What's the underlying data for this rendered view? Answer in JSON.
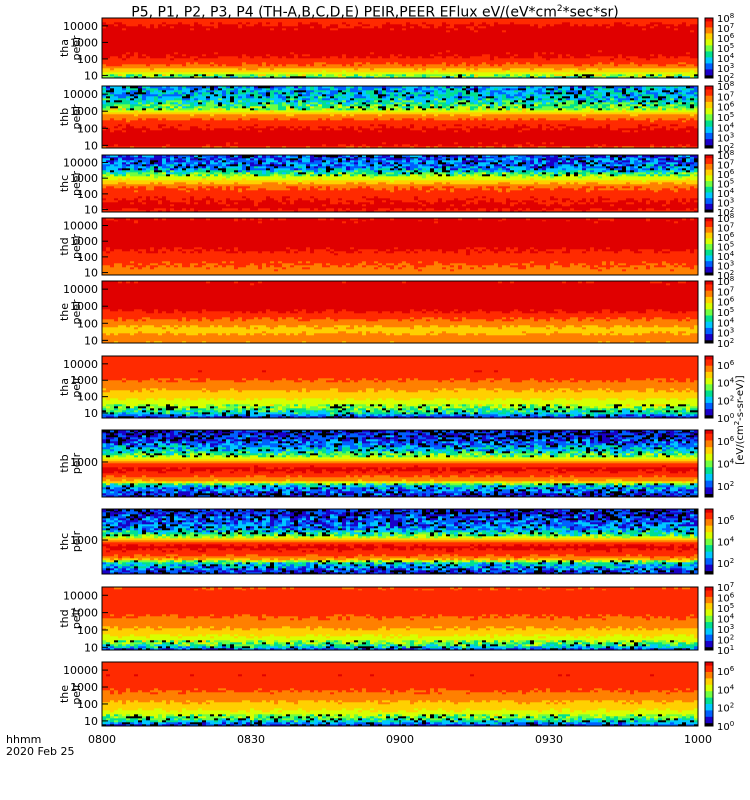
{
  "title_parts": [
    "P5, P1, P2, P3, P4 (TH-A,B,C,D,E) PEIR,PEER EFlux eV/(eV*cm",
    "2",
    "*sec*sr)"
  ],
  "colorbar_label_prefix": "[eV/(cm",
  "colorbar_label_sup": "2",
  "colorbar_label_suffix": "-s-sr-eV)]",
  "time_axis": {
    "label_line1": "hhmm",
    "label_line2": "2020 Feb 25",
    "ticks": [
      "0800",
      "0830",
      "0900",
      "0930",
      "1000"
    ],
    "range": [
      "08:00",
      "10:00"
    ]
  },
  "palette": [
    "#000000",
    "#1a00c8",
    "#0060ff",
    "#00c8ff",
    "#00e090",
    "#70ff40",
    "#d8ff00",
    "#ffd000",
    "#ff8000",
    "#ff2a00",
    "#e00000"
  ],
  "chart_data": {
    "type": "heatmap",
    "x_range": [
      "08:00",
      "10:00"
    ],
    "y_scale": "log",
    "panels": [
      {
        "name": "tha peer",
        "ylabel_line1": "tha",
        "ylabel_line2": "peer",
        "yticks": [
          "10",
          "100",
          "1000",
          "10000"
        ],
        "ylim": [
          7,
          30000
        ],
        "cbar_ticks": [
          "10^2",
          "10^3",
          "10^4",
          "10^5",
          "10^6",
          "10^7",
          "10^8"
        ],
        "cbar_range": [
          2,
          8
        ],
        "profile": [
          [
            7,
            4.5
          ],
          [
            12,
            5.5
          ],
          [
            40,
            7.0
          ],
          [
            150,
            7.8
          ],
          [
            1000,
            8.0
          ],
          [
            10000,
            7.8
          ],
          [
            30000,
            7.3
          ]
        ]
      },
      {
        "name": "thb peer",
        "ylabel_line1": "thb",
        "ylabel_line2": "peer",
        "yticks": [
          "10",
          "100",
          "1000",
          "10000"
        ],
        "ylim": [
          7,
          30000
        ],
        "cbar_ticks": [
          "10^2",
          "10^3",
          "10^4",
          "10^5",
          "10^6",
          "10^7",
          "10^8"
        ],
        "cbar_range": [
          2,
          8
        ],
        "profile": [
          [
            7,
            6.8
          ],
          [
            10,
            7.8
          ],
          [
            40,
            8.0
          ],
          [
            200,
            7.5
          ],
          [
            700,
            6.5
          ],
          [
            1500,
            5.0
          ],
          [
            5000,
            4.0
          ],
          [
            12000,
            3.8
          ],
          [
            30000,
            3.5
          ]
        ]
      },
      {
        "name": "thc peer",
        "ylabel_line1": "thc",
        "ylabel_line2": "peer",
        "yticks": [
          "10",
          "100",
          "1000",
          "10000"
        ],
        "ylim": [
          7,
          30000
        ],
        "cbar_ticks": [
          "10^2",
          "10^3",
          "10^4",
          "10^5",
          "10^6",
          "10^7",
          "10^8"
        ],
        "cbar_range": [
          2,
          8
        ],
        "profile": [
          [
            7,
            7.5
          ],
          [
            15,
            7.9
          ],
          [
            60,
            7.6
          ],
          [
            300,
            7.0
          ],
          [
            700,
            6.0
          ],
          [
            1500,
            5.2
          ],
          [
            4000,
            3.5
          ],
          [
            30000,
            3.0
          ]
        ]
      },
      {
        "name": "thd peer",
        "ylabel_line1": "thd",
        "ylabel_line2": "peer",
        "yticks": [
          "10",
          "100",
          "1000",
          "10000"
        ],
        "ylim": [
          7,
          30000
        ],
        "cbar_ticks": [
          "10^2",
          "10^3",
          "10^4",
          "10^5",
          "10^6",
          "10^7",
          "10^8"
        ],
        "cbar_range": [
          2,
          8
        ],
        "profile": [
          [
            7,
            6.8
          ],
          [
            20,
            7.0
          ],
          [
            100,
            7.4
          ],
          [
            500,
            7.9
          ],
          [
            3000,
            8.0
          ],
          [
            30000,
            7.8
          ]
        ]
      },
      {
        "name": "the peer",
        "ylabel_line1": "the",
        "ylabel_line2": "peer",
        "yticks": [
          "10",
          "100",
          "1000",
          "10000"
        ],
        "ylim": [
          7,
          30000
        ],
        "cbar_ticks": [
          "10^2",
          "10^3",
          "10^4",
          "10^5",
          "10^6",
          "10^7",
          "10^8"
        ],
        "cbar_range": [
          2,
          8
        ],
        "profile": [
          [
            7,
            6.5
          ],
          [
            12,
            7.0
          ],
          [
            40,
            6.2
          ],
          [
            150,
            7.0
          ],
          [
            700,
            7.9
          ],
          [
            10000,
            8.0
          ],
          [
            30000,
            7.8
          ]
        ]
      },
      {
        "name": "tha peir",
        "ylabel_line1": "tha",
        "ylabel_line2": "peir",
        "yticks": [
          "10",
          "100",
          "1000",
          "10000"
        ],
        "ylim": [
          5,
          30000
        ],
        "cbar_ticks": [
          "10^0",
          "10^2",
          "10^4",
          "10^6"
        ],
        "cbar_range": [
          0,
          7
        ],
        "profile": [
          [
            5,
            0.5
          ],
          [
            10,
            2.5
          ],
          [
            30,
            3.8
          ],
          [
            100,
            4.8
          ],
          [
            400,
            5.5
          ],
          [
            3000,
            6.5
          ],
          [
            30000,
            6.3
          ]
        ]
      },
      {
        "name": "thb peir",
        "ylabel_line1": "thb",
        "ylabel_line2": "peir",
        "yticks": [
          "1000"
        ],
        "ylim": [
          300,
          3000
        ],
        "cbar_ticks": [
          "10^2",
          "10^4",
          "10^6"
        ],
        "cbar_range": [
          1,
          7
        ],
        "profile": [
          [
            300,
            1.5
          ],
          [
            380,
            2.2
          ],
          [
            450,
            3.0
          ],
          [
            520,
            5.5
          ],
          [
            650,
            6.4
          ],
          [
            800,
            6.9
          ],
          [
            950,
            6.2
          ],
          [
            1150,
            4.5
          ],
          [
            1500,
            3.0
          ],
          [
            2200,
            1.8
          ],
          [
            3000,
            1.6
          ]
        ]
      },
      {
        "name": "thc peir",
        "ylabel_line1": "thc",
        "ylabel_line2": "peir",
        "yticks": [
          "1000"
        ],
        "ylim": [
          300,
          3000
        ],
        "cbar_ticks": [
          "10^2",
          "10^4",
          "10^6"
        ],
        "cbar_range": [
          1,
          7
        ],
        "profile": [
          [
            300,
            1.5
          ],
          [
            380,
            2.5
          ],
          [
            450,
            3.2
          ],
          [
            520,
            5.8
          ],
          [
            650,
            6.5
          ],
          [
            800,
            6.9
          ],
          [
            950,
            6.0
          ],
          [
            1150,
            4.0
          ],
          [
            1500,
            2.5
          ],
          [
            3000,
            1.5
          ]
        ]
      },
      {
        "name": "thd peir",
        "ylabel_line1": "thd",
        "ylabel_line2": "peir",
        "yticks": [
          "10",
          "100",
          "1000",
          "10000"
        ],
        "ylim": [
          7,
          30000
        ],
        "cbar_ticks": [
          "10^1",
          "10^2",
          "10^3",
          "10^4",
          "10^5",
          "10^6",
          "10^7"
        ],
        "cbar_range": [
          1,
          7
        ],
        "profile": [
          [
            7,
            1.5
          ],
          [
            12,
            3.5
          ],
          [
            40,
            4.8
          ],
          [
            150,
            5.6
          ],
          [
            1000,
            6.3
          ],
          [
            5000,
            6.5
          ],
          [
            30000,
            6.2
          ]
        ]
      },
      {
        "name": "the peir",
        "ylabel_line1": "the",
        "ylabel_line2": "peir",
        "yticks": [
          "10",
          "100",
          "1000",
          "10000"
        ],
        "ylim": [
          5,
          30000
        ],
        "cbar_ticks": [
          "10^0",
          "10^2",
          "10^4",
          "10^6"
        ],
        "cbar_range": [
          0,
          7
        ],
        "profile": [
          [
            5,
            0.5
          ],
          [
            12,
            3.0
          ],
          [
            40,
            4.5
          ],
          [
            150,
            5.3
          ],
          [
            1000,
            6.2
          ],
          [
            5000,
            6.5
          ],
          [
            30000,
            6.3
          ]
        ]
      }
    ]
  }
}
